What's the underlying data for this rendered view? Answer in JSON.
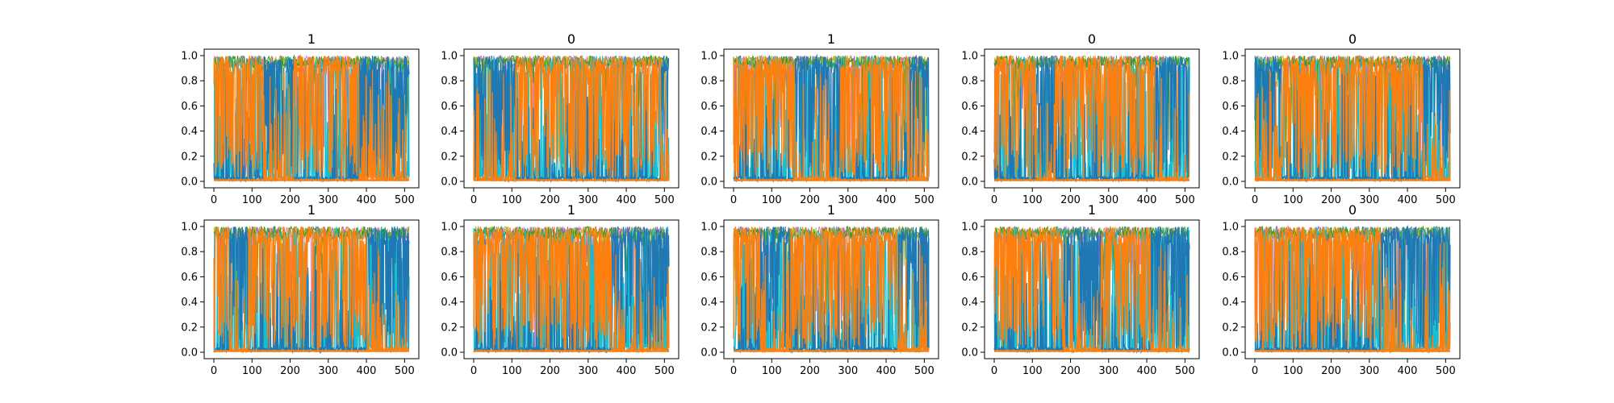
{
  "colors": {
    "blue": "#1f77b4",
    "orange": "#ff7f0e",
    "cyan": "#17becf",
    "olive": "#bcbd22",
    "purple": "#9467bd",
    "pink": "#e377c2",
    "green": "#2ca02c",
    "gray": "#7f7f7f"
  },
  "chart_data": [
    {
      "type": "line",
      "title": "1",
      "xlim": [
        0,
        512
      ],
      "ylim": [
        0.0,
        1.0
      ],
      "xticks": [
        "0",
        "100",
        "200",
        "300",
        "400",
        "500"
      ],
      "yticks": [
        "0.0",
        "0.2",
        "0.4",
        "0.6",
        "0.8",
        "1.0"
      ],
      "dominant_series": [
        {
          "color": "orange",
          "x_range": [
            0,
            130
          ]
        },
        {
          "color": "blue",
          "x_range": [
            130,
            210
          ]
        },
        {
          "color": "orange",
          "x_range": [
            210,
            380
          ]
        },
        {
          "color": "blue",
          "x_range": [
            380,
            512
          ]
        }
      ]
    },
    {
      "type": "line",
      "title": "0",
      "xlim": [
        0,
        512
      ],
      "ylim": [
        0.0,
        1.0
      ],
      "xticks": [
        "0",
        "100",
        "200",
        "300",
        "400",
        "500"
      ],
      "yticks": [
        "0.0",
        "0.2",
        "0.4",
        "0.6",
        "0.8",
        "1.0"
      ],
      "dominant_series": [
        {
          "color": "blue",
          "x_range": [
            0,
            110
          ]
        },
        {
          "color": "orange",
          "x_range": [
            110,
            490
          ]
        },
        {
          "color": "blue",
          "x_range": [
            490,
            512
          ]
        }
      ]
    },
    {
      "type": "line",
      "title": "1",
      "xlim": [
        0,
        512
      ],
      "ylim": [
        0.0,
        1.0
      ],
      "xticks": [
        "0",
        "100",
        "200",
        "300",
        "400",
        "500"
      ],
      "yticks": [
        "0.0",
        "0.2",
        "0.4",
        "0.6",
        "0.8",
        "1.0"
      ],
      "dominant_series": [
        {
          "color": "orange",
          "x_range": [
            0,
            160
          ]
        },
        {
          "color": "blue",
          "x_range": [
            160,
            280
          ]
        },
        {
          "color": "orange",
          "x_range": [
            280,
            460
          ]
        },
        {
          "color": "blue",
          "x_range": [
            460,
            512
          ]
        }
      ]
    },
    {
      "type": "line",
      "title": "0",
      "xlim": [
        0,
        512
      ],
      "ylim": [
        0.0,
        1.0
      ],
      "xticks": [
        "0",
        "100",
        "200",
        "300",
        "400",
        "500"
      ],
      "yticks": [
        "0.0",
        "0.2",
        "0.4",
        "0.6",
        "0.8",
        "1.0"
      ],
      "dominant_series": [
        {
          "color": "orange",
          "x_range": [
            0,
            110
          ]
        },
        {
          "color": "blue",
          "x_range": [
            110,
            160
          ]
        },
        {
          "color": "orange",
          "x_range": [
            160,
            420
          ]
        },
        {
          "color": "blue",
          "x_range": [
            420,
            512
          ]
        }
      ]
    },
    {
      "type": "line",
      "title": "0",
      "xlim": [
        0,
        512
      ],
      "ylim": [
        0.0,
        1.0
      ],
      "xticks": [
        "0",
        "100",
        "200",
        "300",
        "400",
        "500"
      ],
      "yticks": [
        "0.0",
        "0.2",
        "0.4",
        "0.6",
        "0.8",
        "1.0"
      ],
      "dominant_series": [
        {
          "color": "blue",
          "x_range": [
            0,
            70
          ]
        },
        {
          "color": "orange",
          "x_range": [
            70,
            440
          ]
        },
        {
          "color": "blue",
          "x_range": [
            440,
            512
          ]
        }
      ]
    },
    {
      "type": "line",
      "title": "1",
      "xlim": [
        0,
        512
      ],
      "ylim": [
        0.0,
        1.0
      ],
      "xticks": [
        "0",
        "100",
        "200",
        "300",
        "400",
        "500"
      ],
      "yticks": [
        "0.0",
        "0.2",
        "0.4",
        "0.6",
        "0.8",
        "1.0"
      ],
      "dominant_series": [
        {
          "color": "orange",
          "x_range": [
            0,
            40
          ]
        },
        {
          "color": "blue",
          "x_range": [
            40,
            90
          ]
        },
        {
          "color": "orange",
          "x_range": [
            90,
            400
          ]
        },
        {
          "color": "blue",
          "x_range": [
            400,
            512
          ]
        }
      ]
    },
    {
      "type": "line",
      "title": "1",
      "xlim": [
        0,
        512
      ],
      "ylim": [
        0.0,
        1.0
      ],
      "xticks": [
        "0",
        "100",
        "200",
        "300",
        "400",
        "500"
      ],
      "yticks": [
        "0.0",
        "0.2",
        "0.4",
        "0.6",
        "0.8",
        "1.0"
      ],
      "dominant_series": [
        {
          "color": "orange",
          "x_range": [
            0,
            360
          ]
        },
        {
          "color": "blue",
          "x_range": [
            360,
            512
          ]
        }
      ]
    },
    {
      "type": "line",
      "title": "1",
      "xlim": [
        0,
        512
      ],
      "ylim": [
        0.0,
        1.0
      ],
      "xticks": [
        "0",
        "100",
        "200",
        "300",
        "400",
        "500"
      ],
      "yticks": [
        "0.0",
        "0.2",
        "0.4",
        "0.6",
        "0.8",
        "1.0"
      ],
      "dominant_series": [
        {
          "color": "orange",
          "x_range": [
            0,
            70
          ]
        },
        {
          "color": "blue",
          "x_range": [
            70,
            150
          ]
        },
        {
          "color": "orange",
          "x_range": [
            150,
            430
          ]
        },
        {
          "color": "blue",
          "x_range": [
            430,
            512
          ]
        }
      ]
    },
    {
      "type": "line",
      "title": "1",
      "xlim": [
        0,
        512
      ],
      "ylim": [
        0.0,
        1.0
      ],
      "xticks": [
        "0",
        "100",
        "200",
        "300",
        "400",
        "500"
      ],
      "yticks": [
        "0.0",
        "0.2",
        "0.4",
        "0.6",
        "0.8",
        "1.0"
      ],
      "dominant_series": [
        {
          "color": "orange",
          "x_range": [
            0,
            180
          ]
        },
        {
          "color": "blue",
          "x_range": [
            180,
            280
          ]
        },
        {
          "color": "orange",
          "x_range": [
            280,
            410
          ]
        },
        {
          "color": "blue",
          "x_range": [
            410,
            512
          ]
        }
      ]
    },
    {
      "type": "line",
      "title": "0",
      "xlim": [
        0,
        512
      ],
      "ylim": [
        0.0,
        1.0
      ],
      "xticks": [
        "0",
        "100",
        "200",
        "300",
        "400",
        "500"
      ],
      "yticks": [
        "0.0",
        "0.2",
        "0.4",
        "0.6",
        "0.8",
        "1.0"
      ],
      "dominant_series": [
        {
          "color": "orange",
          "x_range": [
            0,
            330
          ]
        },
        {
          "color": "blue",
          "x_range": [
            330,
            512
          ]
        }
      ]
    }
  ]
}
